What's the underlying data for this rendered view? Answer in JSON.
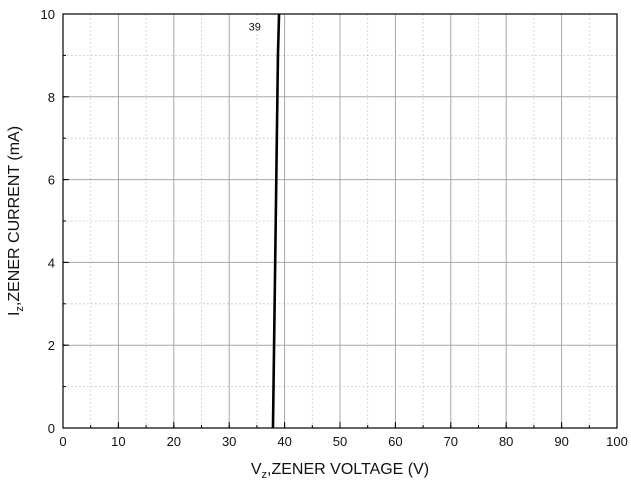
{
  "chart_data": {
    "type": "line",
    "xlim": [
      0,
      100
    ],
    "ylim": [
      0,
      10
    ],
    "x_ticks": [
      0,
      10,
      20,
      30,
      40,
      50,
      60,
      70,
      80,
      90,
      100
    ],
    "y_ticks": [
      0,
      2,
      4,
      6,
      8,
      10
    ],
    "x_minor_step": 5,
    "y_minor_step": 1,
    "grid": true,
    "xlabel": {
      "main": "V",
      "sub": "z",
      "rest": ",ZENER VOLTAGE (V)"
    },
    "ylabel": {
      "main": "I",
      "sub": "z",
      "rest": ",ZENER CURRENT (mA)"
    },
    "series": [
      {
        "label": "39",
        "x": [
          37.9,
          38.0,
          38.2,
          38.4,
          38.6,
          38.8,
          39.0
        ],
        "y": [
          0,
          1,
          3,
          5,
          7,
          9,
          10
        ]
      }
    ],
    "annotations": [
      {
        "text": "39",
        "x": 33.5,
        "y": 9.6
      }
    ]
  }
}
